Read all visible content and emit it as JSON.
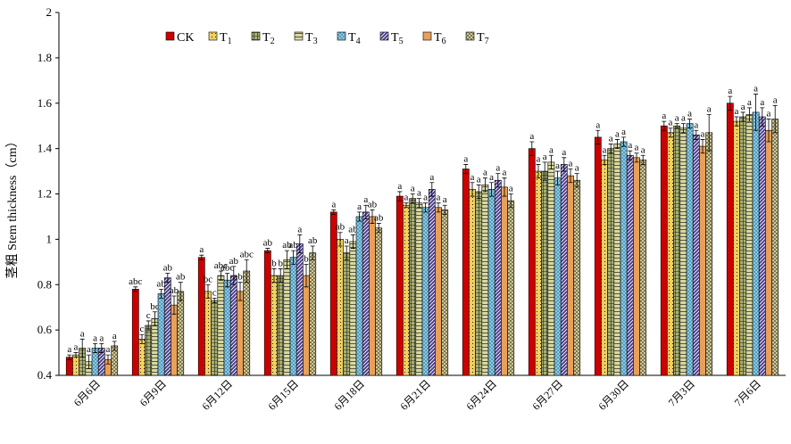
{
  "chart_data": {
    "type": "bar",
    "ylabel": "茎粗 Stem thickness（cm）",
    "ylim": [
      0.4,
      2
    ],
    "yticks": [
      "0.4",
      "0.6",
      "0.8",
      "1",
      "1.2",
      "1.4",
      "1.6",
      "1.8",
      "2"
    ],
    "categories": [
      "6月6日",
      "6月9日",
      "6月12日",
      "6月15日",
      "6月18日",
      "6月21日",
      "6月24日",
      "6月27日",
      "6月30日",
      "7月3日",
      "7月6日"
    ],
    "legend_position": "top-left",
    "series": [
      {
        "name": "CK",
        "sub": "",
        "color": "#cc0000",
        "pattern": "solid",
        "values": [
          0.48,
          0.78,
          0.92,
          0.95,
          1.12,
          1.19,
          1.31,
          1.4,
          1.45,
          1.5,
          1.6
        ],
        "errors": [
          0.01,
          0.01,
          0.01,
          0.01,
          0.01,
          0.02,
          0.02,
          0.03,
          0.03,
          0.02,
          0.03
        ],
        "labels": [
          "a",
          "abc",
          "a",
          "ab",
          "a",
          "a",
          "a",
          "a",
          "a",
          "a",
          "a"
        ]
      },
      {
        "name": "T",
        "sub": "1",
        "color": "#f0d060",
        "pattern": "dots",
        "values": [
          0.49,
          0.56,
          0.77,
          0.84,
          1.0,
          1.15,
          1.22,
          1.3,
          1.35,
          1.47,
          1.52
        ],
        "errors": [
          0.01,
          0.02,
          0.03,
          0.03,
          0.03,
          0.01,
          0.03,
          0.03,
          0.02,
          0.02,
          0.02
        ],
        "labels": [
          "a",
          "c",
          "bc",
          "b",
          "ab",
          "a",
          "a",
          "a",
          "a",
          "a",
          "a"
        ]
      },
      {
        "name": "T",
        "sub": "2",
        "color": "#a8b070",
        "pattern": "grid",
        "values": [
          0.52,
          0.62,
          0.73,
          0.84,
          0.94,
          1.18,
          1.21,
          1.3,
          1.4,
          1.5,
          1.54
        ],
        "errors": [
          0.04,
          0.02,
          0.01,
          0.03,
          0.03,
          0.02,
          0.03,
          0.04,
          0.02,
          0.01,
          0.02
        ],
        "labels": [
          "a",
          "c",
          "c",
          "b",
          "a",
          "a",
          "a",
          "a",
          "a",
          "a",
          "a"
        ]
      },
      {
        "name": "T",
        "sub": "3",
        "color": "#d8d8a0",
        "pattern": "hlines",
        "values": [
          0.46,
          0.65,
          0.84,
          0.91,
          0.99,
          1.16,
          1.24,
          1.34,
          1.42,
          1.49,
          1.55
        ],
        "errors": [
          0.03,
          0.03,
          0.02,
          0.04,
          0.03,
          0.02,
          0.03,
          0.03,
          0.02,
          0.02,
          0.03
        ],
        "labels": [
          "a",
          "bc",
          "abc",
          "ab",
          "ab",
          "a",
          "a",
          "a",
          "a",
          "a",
          "a"
        ]
      },
      {
        "name": "T",
        "sub": "4",
        "color": "#7fd0e8",
        "pattern": "dashes",
        "values": [
          0.52,
          0.76,
          0.82,
          0.92,
          1.1,
          1.14,
          1.22,
          1.27,
          1.43,
          1.51,
          1.56
        ],
        "errors": [
          0.02,
          0.02,
          0.03,
          0.03,
          0.02,
          0.02,
          0.03,
          0.03,
          0.02,
          0.02,
          0.08
        ],
        "labels": [
          "a",
          "ab",
          "abc",
          "ab",
          "a",
          "a",
          "a",
          "a",
          "a",
          "a",
          "a"
        ]
      },
      {
        "name": "T",
        "sub": "5",
        "color": "#4a3a8c",
        "pattern": "diag",
        "values": [
          0.52,
          0.83,
          0.84,
          0.98,
          1.12,
          1.22,
          1.26,
          1.33,
          1.37,
          1.46,
          1.54
        ],
        "errors": [
          0.02,
          0.02,
          0.04,
          0.04,
          0.03,
          0.03,
          0.03,
          0.03,
          0.02,
          0.02,
          0.04
        ],
        "labels": [
          "a",
          "ab",
          "ab",
          "a",
          "a",
          "a",
          "a",
          "a",
          "a",
          "a",
          "a"
        ]
      },
      {
        "name": "T",
        "sub": "6",
        "color": "#e8a058",
        "pattern": "solid",
        "values": [
          0.47,
          0.71,
          0.77,
          0.84,
          1.1,
          1.14,
          1.23,
          1.28,
          1.36,
          1.41,
          1.48
        ],
        "errors": [
          0.02,
          0.04,
          0.04,
          0.05,
          0.03,
          0.02,
          0.04,
          0.03,
          0.02,
          0.03,
          0.05
        ],
        "labels": [
          "a",
          "ab",
          "abc",
          "b",
          "ab",
          "a",
          "a",
          "a",
          "a",
          "a",
          "a"
        ]
      },
      {
        "name": "T",
        "sub": "7",
        "color": "#d0c890",
        "pattern": "cross",
        "values": [
          0.53,
          0.77,
          0.86,
          0.94,
          1.05,
          1.13,
          1.17,
          1.26,
          1.35,
          1.47,
          1.53
        ],
        "errors": [
          0.02,
          0.04,
          0.05,
          0.03,
          0.02,
          0.02,
          0.03,
          0.03,
          0.02,
          0.08,
          0.06
        ],
        "labels": [
          "a",
          "ab",
          "abc",
          "ab",
          "ab",
          "a",
          "a",
          "a",
          "a",
          "a",
          "a"
        ]
      }
    ]
  }
}
